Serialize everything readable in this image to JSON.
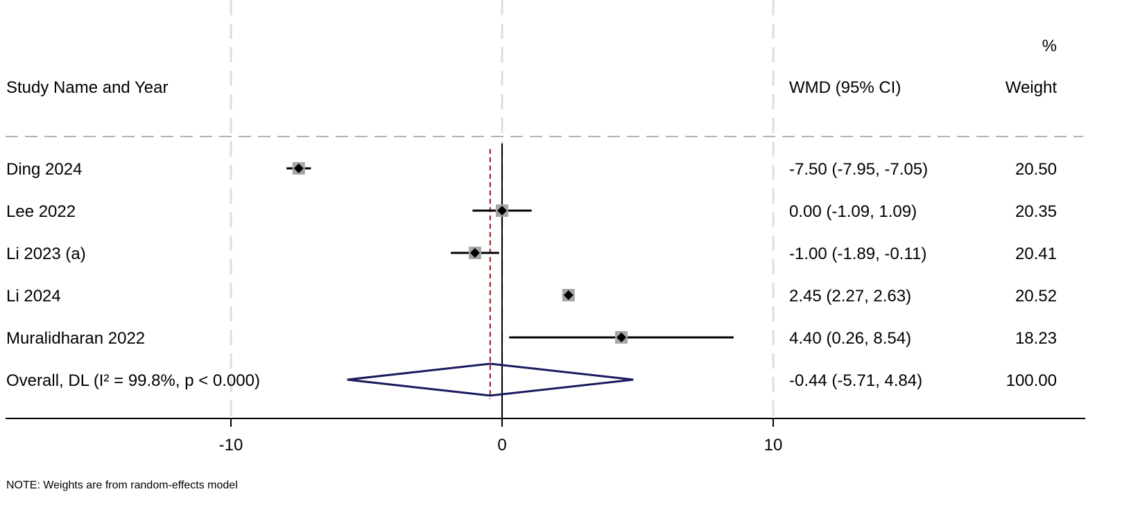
{
  "header": {
    "study_col": "Study Name and Year",
    "effect_col": "WMD (95% CI)",
    "weight_col_top": "%",
    "weight_col_bottom": "Weight"
  },
  "footer_note": "NOTE: Weights are from random-effects model",
  "chart_data": {
    "type": "forest",
    "measure": "WMD",
    "xlim": [
      -18.6,
      21.5
    ],
    "xticks": [
      -10,
      0,
      10
    ],
    "xtick_labels": [
      "-10",
      "0",
      "10"
    ],
    "reference_line": 0,
    "grid_x": [
      -10,
      0,
      10
    ],
    "studies": [
      {
        "name": "Ding 2024",
        "estimate": -7.5,
        "ci_low": -7.95,
        "ci_high": -7.05,
        "ci_text": "-7.50 (-7.95, -7.05)",
        "weight": 20.5,
        "weight_text": "20.50"
      },
      {
        "name": "Lee 2022",
        "estimate": 0.0,
        "ci_low": -1.09,
        "ci_high": 1.09,
        "ci_text": "0.00 (-1.09, 1.09)",
        "weight": 20.35,
        "weight_text": "20.35"
      },
      {
        "name": "Li 2023 (a)",
        "estimate": -1.0,
        "ci_low": -1.89,
        "ci_high": -0.11,
        "ci_text": "-1.00 (-1.89, -0.11)",
        "weight": 20.41,
        "weight_text": "20.41"
      },
      {
        "name": "Li 2024",
        "estimate": 2.45,
        "ci_low": 2.27,
        "ci_high": 2.63,
        "ci_text": "2.45 (2.27, 2.63)",
        "weight": 20.52,
        "weight_text": "20.52"
      },
      {
        "name": "Muralidharan 2022",
        "estimate": 4.4,
        "ci_low": 0.26,
        "ci_high": 8.54,
        "ci_text": "4.40 (0.26, 8.54)",
        "weight": 18.23,
        "weight_text": "18.23"
      }
    ],
    "overall": {
      "label": "Overall, DL (I² = 99.8%, p < 0.000)",
      "estimate": -0.44,
      "ci_low": -5.71,
      "ci_high": 4.84,
      "ci_text": "-0.44 (-5.71, 4.84)",
      "weight": 100.0,
      "weight_text": "100.00"
    },
    "colors": {
      "marker": "#000000",
      "weight_box": "#a6a6a6",
      "overall_diamond": "#1a1a5e",
      "overall_line": "#8b1a1a",
      "grid": "#dddddd",
      "axis": "#000000"
    }
  }
}
